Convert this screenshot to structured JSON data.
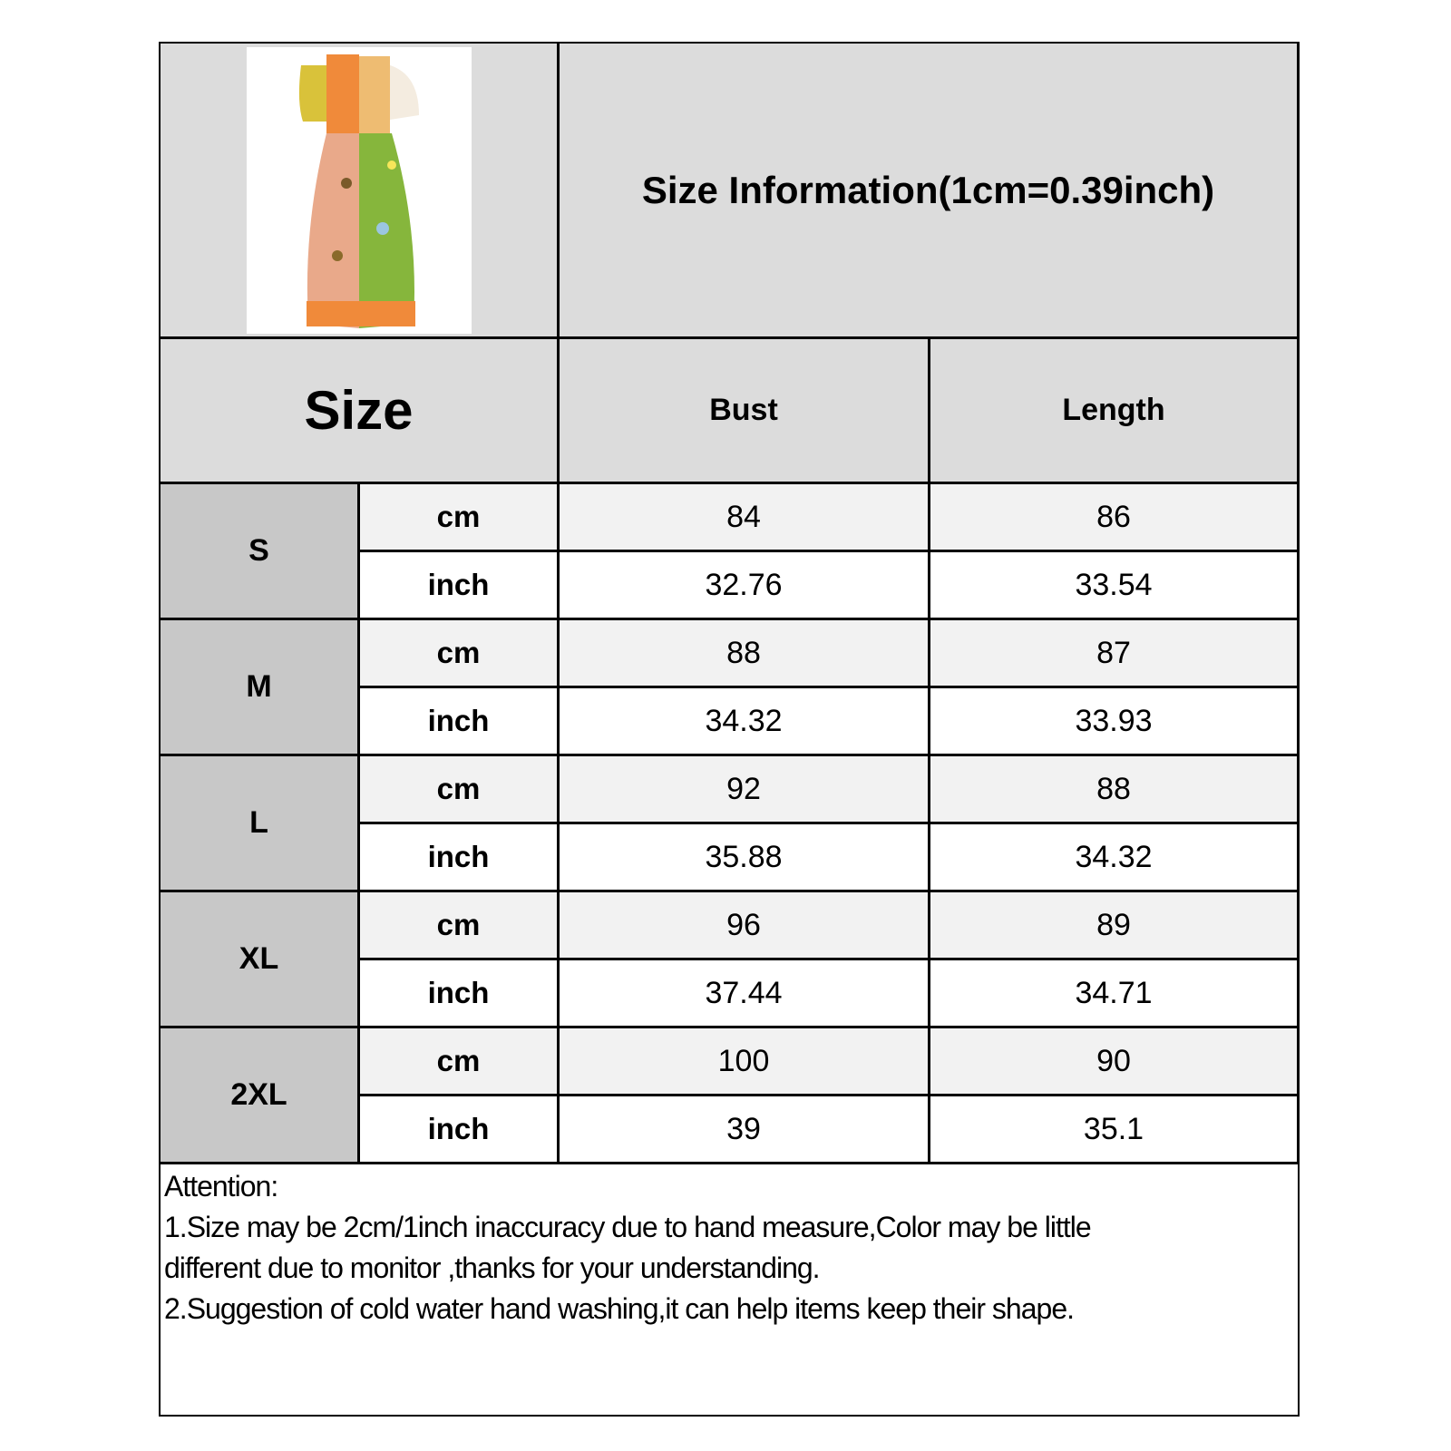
{
  "header": {
    "title": "Size Information(1cm=0.39inch)",
    "product_image": "patchwork floral puff-sleeve maxi dress"
  },
  "columns": {
    "size": "Size",
    "bust": "Bust",
    "length": "Length"
  },
  "rows": [
    {
      "size": "S",
      "cm": {
        "unit": "cm",
        "bust": "84",
        "length": "86"
      },
      "inch": {
        "unit": "inch",
        "bust": "32.76",
        "length": "33.54"
      }
    },
    {
      "size": "M",
      "cm": {
        "unit": "cm",
        "bust": "88",
        "length": "87"
      },
      "inch": {
        "unit": "inch",
        "bust": "34.32",
        "length": "33.93"
      }
    },
    {
      "size": "L",
      "cm": {
        "unit": "cm",
        "bust": "92",
        "length": "88"
      },
      "inch": {
        "unit": "inch",
        "bust": "35.88",
        "length": "34.32"
      }
    },
    {
      "size": "XL",
      "cm": {
        "unit": "cm",
        "bust": "96",
        "length": "89"
      },
      "inch": {
        "unit": "inch",
        "bust": "37.44",
        "length": "34.71"
      }
    },
    {
      "size": "2XL",
      "cm": {
        "unit": "cm",
        "bust": "100",
        "length": "90"
      },
      "inch": {
        "unit": "inch",
        "bust": "39",
        "length": "35.1"
      }
    }
  ],
  "notes": {
    "heading": "Attention:",
    "line1": "1.Size may be 2cm/1inch inaccuracy due to hand measure,Color may be little",
    "line1b": "different due to monitor ,thanks for your understanding.",
    "line2": "2.Suggestion of cold water hand washing,it can help items keep their shape."
  }
}
